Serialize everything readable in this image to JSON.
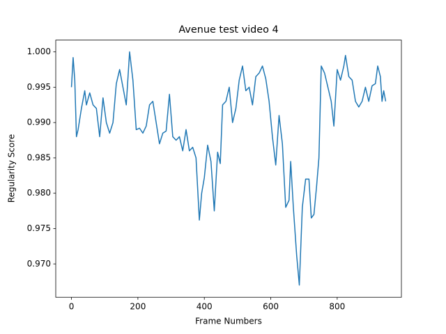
{
  "chart_data": {
    "type": "line",
    "title": "Avenue test video 4",
    "x_label": "Frame Numbers",
    "y_label": "Regularity Score",
    "x": [
      0,
      5,
      10,
      15,
      20,
      30,
      40,
      45,
      55,
      65,
      75,
      85,
      95,
      105,
      115,
      125,
      135,
      145,
      155,
      165,
      175,
      185,
      195,
      205,
      215,
      225,
      235,
      245,
      255,
      265,
      275,
      285,
      295,
      305,
      315,
      325,
      335,
      345,
      355,
      365,
      375,
      385,
      392,
      400,
      410,
      420,
      430,
      440,
      448,
      455,
      465,
      475,
      485,
      495,
      505,
      515,
      525,
      535,
      545,
      555,
      565,
      575,
      585,
      595,
      605,
      615,
      625,
      635,
      645,
      655,
      660,
      668,
      678,
      686,
      695,
      705,
      715,
      722,
      730,
      738,
      745,
      752,
      762,
      772,
      782,
      790,
      800,
      810,
      820,
      825,
      835,
      845,
      855,
      865,
      875,
      885,
      895,
      905,
      915,
      922,
      930,
      935,
      940,
      946
    ],
    "series": [
      {
        "color": "#1f77b4",
        "values": [
          0.995,
          0.9992,
          0.996,
          0.988,
          0.989,
          0.992,
          0.9945,
          0.9925,
          0.9942,
          0.9925,
          0.992,
          0.988,
          0.9935,
          0.99,
          0.9885,
          0.99,
          0.9955,
          0.9975,
          0.995,
          0.9925,
          1.0,
          0.996,
          0.989,
          0.9892,
          0.9885,
          0.9895,
          0.9925,
          0.993,
          0.99,
          0.987,
          0.9885,
          0.9888,
          0.994,
          0.988,
          0.9875,
          0.988,
          0.986,
          0.989,
          0.986,
          0.9865,
          0.985,
          0.9762,
          0.98,
          0.9822,
          0.9868,
          0.9845,
          0.9775,
          0.9858,
          0.9842,
          0.9925,
          0.993,
          0.995,
          0.99,
          0.992,
          0.996,
          0.998,
          0.9945,
          0.995,
          0.9925,
          0.9965,
          0.997,
          0.998,
          0.9962,
          0.993,
          0.988,
          0.984,
          0.991,
          0.987,
          0.978,
          0.979,
          0.9845,
          0.978,
          0.9712,
          0.967,
          0.978,
          0.982,
          0.982,
          0.9765,
          0.977,
          0.981,
          0.985,
          0.998,
          0.997,
          0.995,
          0.993,
          0.9895,
          0.9975,
          0.996,
          0.998,
          0.9995,
          0.9965,
          0.996,
          0.993,
          0.9922,
          0.993,
          0.995,
          0.993,
          0.9952,
          0.9955,
          0.998,
          0.9965,
          0.993,
          0.9945,
          0.993
        ]
      }
    ],
    "xlim": [
      -47.3,
      993.3
    ],
    "ylim": [
      0.96528,
      1.00167
    ],
    "xticks": [
      0,
      200,
      400,
      600,
      800
    ],
    "yticks": [
      {
        "value": 0.97,
        "label": "0.970"
      },
      0.975,
      {
        "value": 0.98,
        "label": "0.980"
      },
      0.985,
      {
        "value": 0.99,
        "label": "0.990"
      },
      0.995,
      {
        "value": 1.0,
        "label": "1.000"
      }
    ],
    "grid": false
  }
}
